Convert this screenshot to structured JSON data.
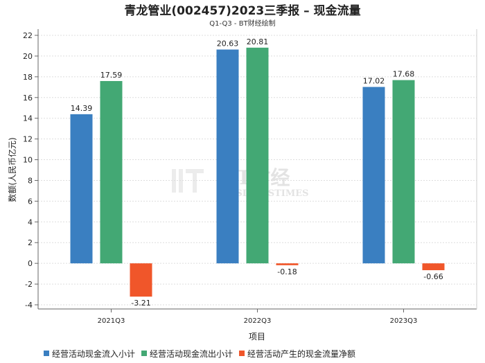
{
  "chart_data": {
    "type": "bar",
    "title": "青龙管业(002457)2023三季报 – 现金流量",
    "subtitle": "Q1-Q3 - BT财经绘制",
    "xlabel": "项目",
    "ylabel": "数额(人民币亿元)",
    "ylim": [
      -4,
      22
    ],
    "yticks": [
      -4,
      -2,
      0,
      2,
      4,
      6,
      8,
      10,
      12,
      14,
      16,
      18,
      20,
      22
    ],
    "categories": [
      "2021Q3",
      "2022Q3",
      "2023Q3"
    ],
    "series": [
      {
        "name": "经营活动现金流入小计",
        "color": "#3a7fc1",
        "values": [
          14.39,
          20.63,
          17.02
        ]
      },
      {
        "name": "经营活动现金流出小计",
        "color": "#43a874",
        "values": [
          17.59,
          20.81,
          17.68
        ]
      },
      {
        "name": "经营活动产生的现金流量净额",
        "color": "#f0562a",
        "values": [
          -3.21,
          -0.18,
          -0.66
        ]
      }
    ],
    "grid": true,
    "legend_position": "bottom"
  },
  "watermark": {
    "main": "BT财经",
    "sub": "BUSINESSTIMES"
  }
}
